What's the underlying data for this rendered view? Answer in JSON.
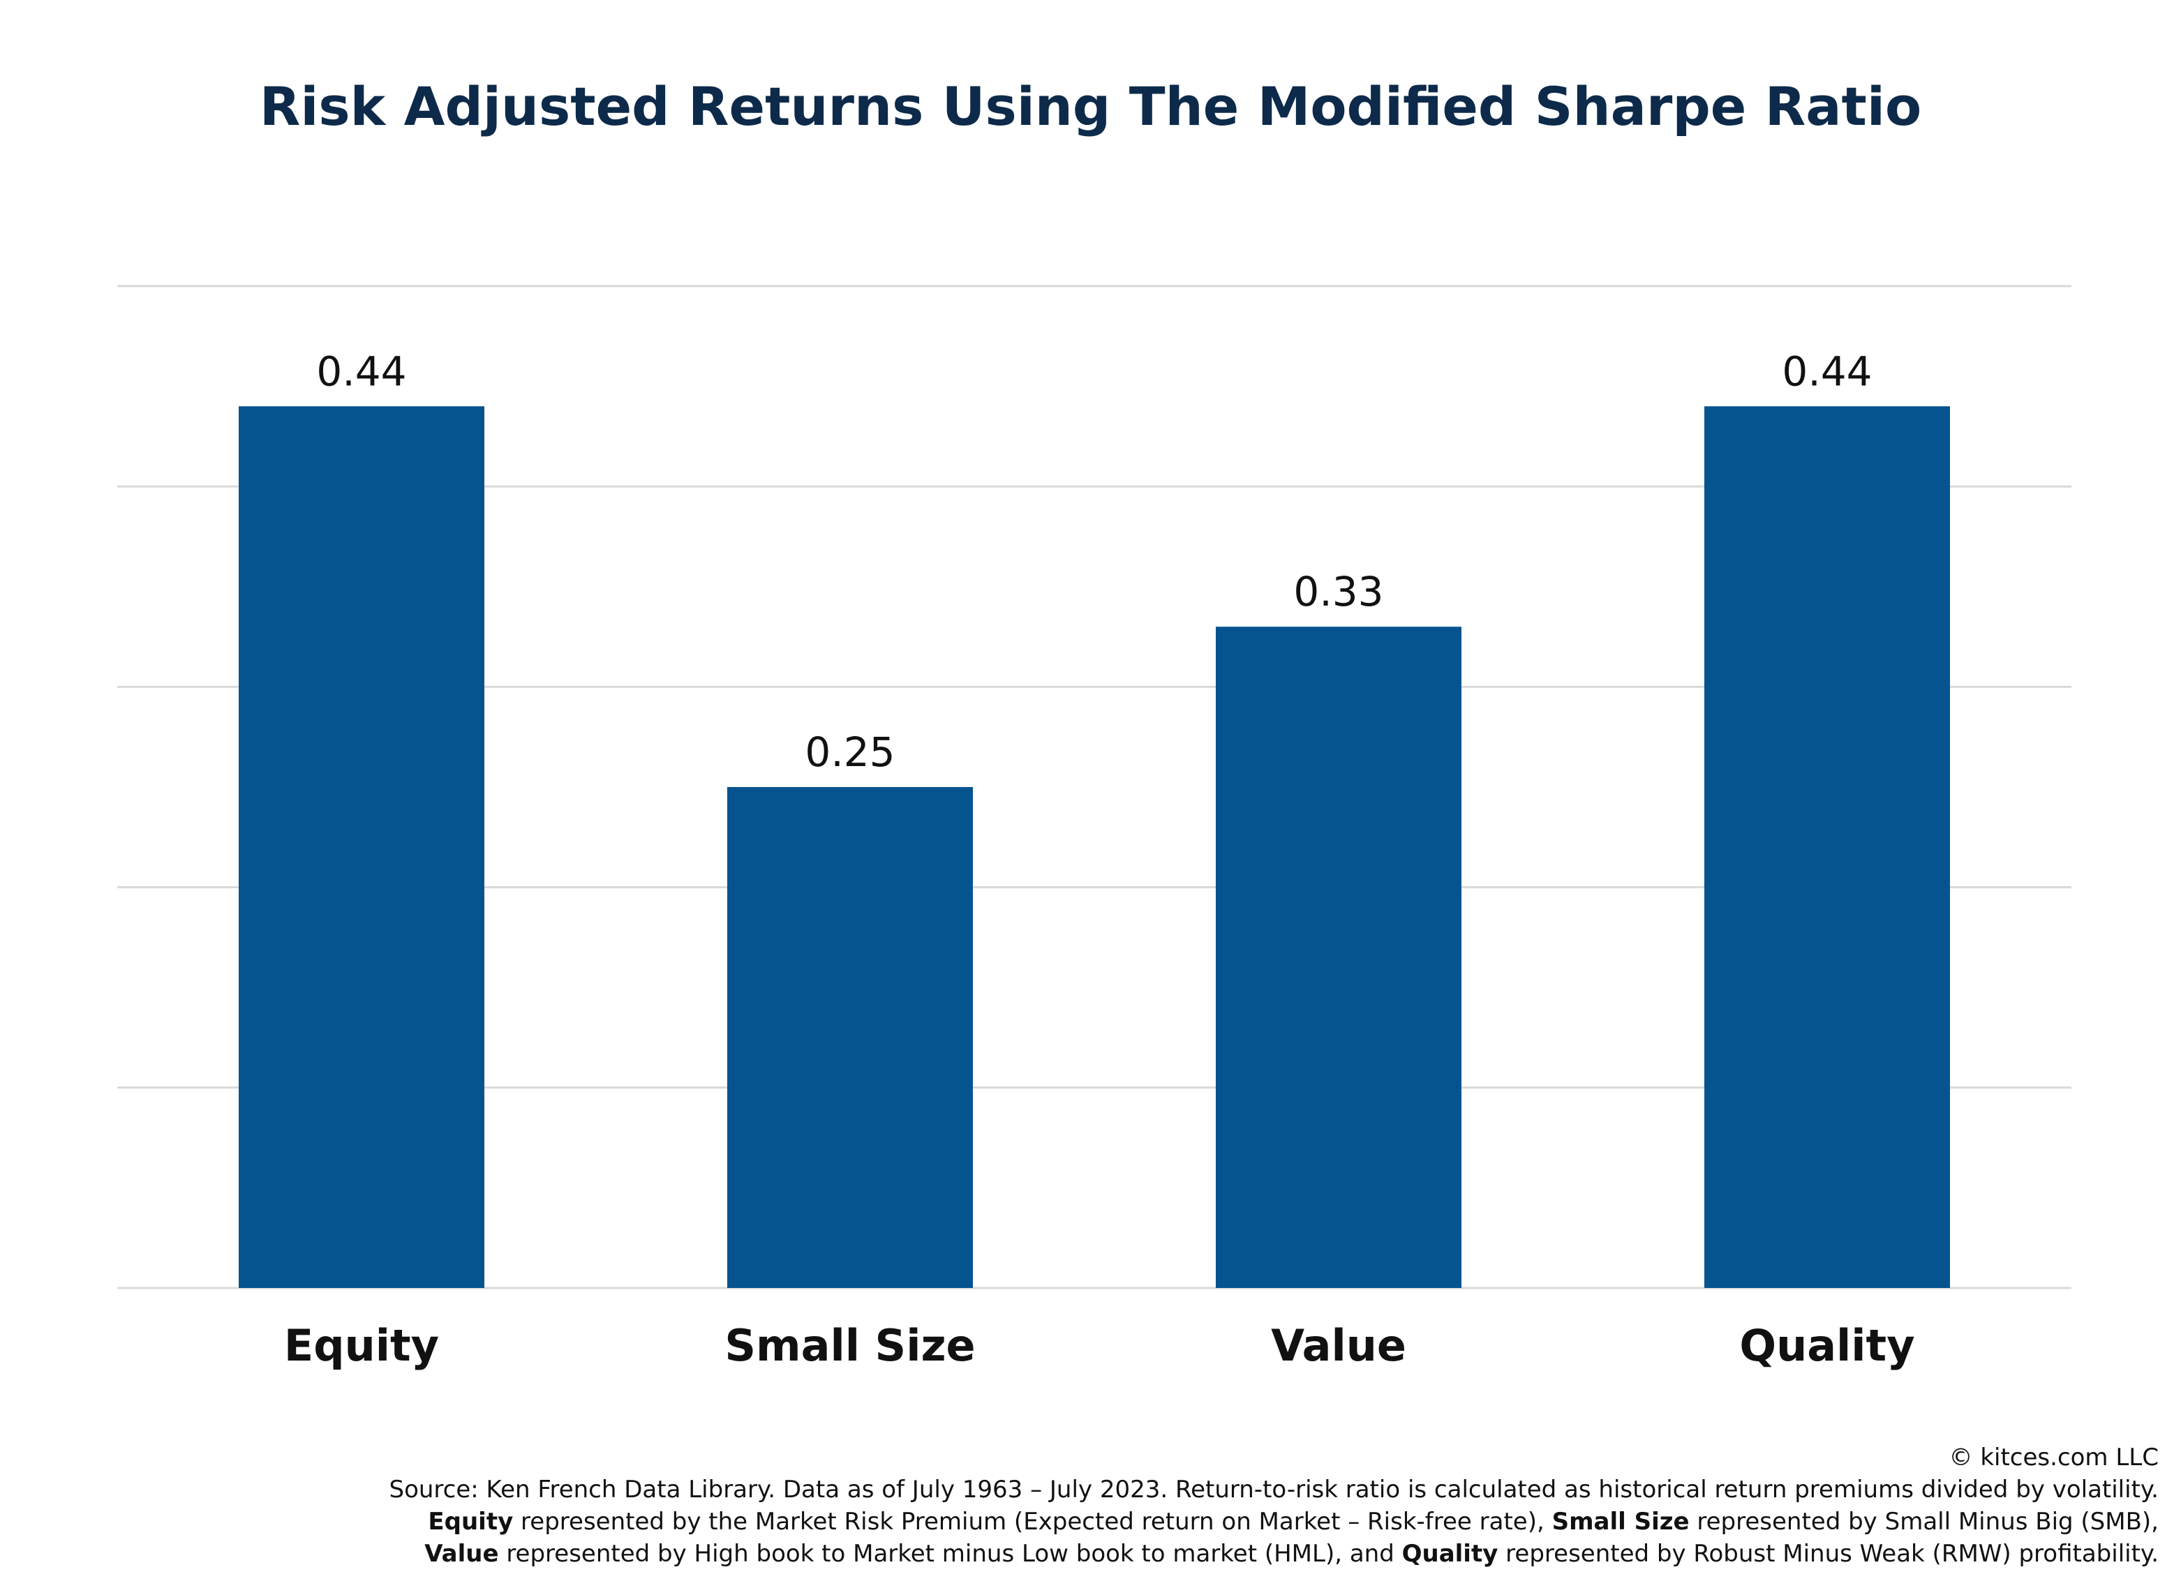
{
  "chart_data": {
    "type": "bar",
    "title": "Risk Adjusted Returns Using The Modified Sharpe Ratio",
    "categories": [
      "Equity",
      "Small Size",
      "Value",
      "Quality"
    ],
    "values": [
      0.44,
      0.25,
      0.33,
      0.44
    ],
    "value_labels": [
      "0.44",
      "0.25",
      "0.33",
      "0.44"
    ],
    "ylim": [
      0,
      0.5
    ],
    "grid": true,
    "bar_color": "#06548f",
    "gridline_color": "#d9d9d9"
  },
  "footer": {
    "copyright": "© kitces.com LLC",
    "source": "Source: Ken French Data Library. Data as of July 1963 – July 2023. Return-to-risk ratio is calculated as historical return premiums divided by volatility.",
    "line2_b1": "Equity",
    "line2_t1": " represented by the Market Risk Premium (Expected return on Market – Risk-free rate), ",
    "line2_b2": "Small Size",
    "line2_t2": " represented by Small Minus Big (SMB),",
    "line3_b1": "Value",
    "line3_t1": " represented by High book to Market minus Low book to market (HML), and ",
    "line3_b2": "Quality",
    "line3_t2": " represented by Robust Minus Weak (RMW) profitability."
  }
}
